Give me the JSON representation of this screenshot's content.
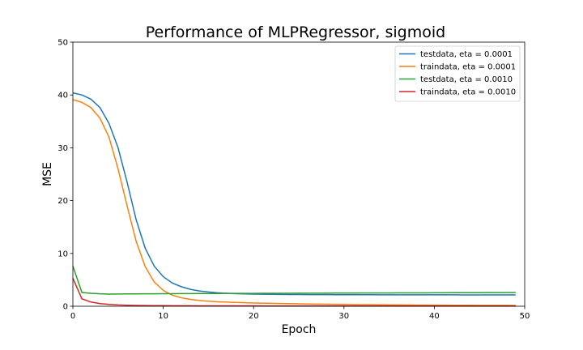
{
  "chart_data": {
    "type": "line",
    "title": "Performance of MLPRegressor, sigmoid",
    "xlabel": "Epoch",
    "ylabel": "MSE",
    "xlim": [
      0,
      50
    ],
    "ylim": [
      0,
      50
    ],
    "xticks": [
      0,
      10,
      20,
      30,
      40,
      50
    ],
    "yticks": [
      0,
      10,
      20,
      30,
      40,
      50
    ],
    "grid": false,
    "legend_position": "top-right",
    "x": [
      0,
      1,
      2,
      3,
      4,
      5,
      6,
      7,
      8,
      9,
      10,
      11,
      12,
      13,
      14,
      15,
      16,
      17,
      18,
      19,
      20,
      21,
      22,
      23,
      24,
      25,
      26,
      27,
      28,
      29,
      30,
      31,
      32,
      33,
      34,
      35,
      36,
      37,
      38,
      39,
      40,
      41,
      42,
      43,
      44,
      45,
      46,
      47,
      48,
      49
    ],
    "series": [
      {
        "name": "testdata, eta = 0.0001",
        "color": "#1f77b4",
        "values": [
          40.4,
          40.0,
          39.2,
          37.6,
          34.6,
          30.0,
          23.5,
          16.4,
          11.0,
          7.6,
          5.6,
          4.4,
          3.7,
          3.2,
          2.9,
          2.7,
          2.55,
          2.45,
          2.38,
          2.33,
          2.3,
          2.28,
          2.26,
          2.24,
          2.23,
          2.22,
          2.21,
          2.2,
          2.2,
          2.19,
          2.19,
          2.18,
          2.18,
          2.18,
          2.17,
          2.17,
          2.17,
          2.17,
          2.16,
          2.16,
          2.16,
          2.16,
          2.16,
          2.15,
          2.15,
          2.15,
          2.15,
          2.15,
          2.15,
          2.15
        ]
      },
      {
        "name": "traindata, eta = 0.0001",
        "color": "#ff7f0e",
        "values": [
          39.1,
          38.6,
          37.6,
          35.6,
          32.0,
          26.0,
          19.0,
          12.3,
          7.5,
          4.6,
          3.0,
          2.1,
          1.6,
          1.3,
          1.1,
          0.95,
          0.85,
          0.78,
          0.72,
          0.67,
          0.62,
          0.58,
          0.55,
          0.52,
          0.49,
          0.46,
          0.43,
          0.41,
          0.39,
          0.37,
          0.35,
          0.33,
          0.31,
          0.3,
          0.28,
          0.27,
          0.26,
          0.25,
          0.24,
          0.23,
          0.22,
          0.21,
          0.2,
          0.19,
          0.19,
          0.18,
          0.18,
          0.17,
          0.17,
          0.16
        ]
      },
      {
        "name": "testdata, eta = 0.0010",
        "color": "#2ca02c",
        "values": [
          7.6,
          2.6,
          2.45,
          2.35,
          2.3,
          2.32,
          2.34,
          2.33,
          2.35,
          2.36,
          2.37,
          2.38,
          2.39,
          2.4,
          2.41,
          2.42,
          2.42,
          2.43,
          2.43,
          2.44,
          2.44,
          2.45,
          2.45,
          2.46,
          2.46,
          2.47,
          2.47,
          2.48,
          2.48,
          2.49,
          2.5,
          2.5,
          2.51,
          2.51,
          2.52,
          2.52,
          2.53,
          2.53,
          2.54,
          2.54,
          2.55,
          2.55,
          2.56,
          2.56,
          2.57,
          2.57,
          2.58,
          2.58,
          2.59,
          2.6
        ]
      },
      {
        "name": "traindata, eta = 0.0010",
        "color": "#d62728",
        "values": [
          5.3,
          1.4,
          0.8,
          0.5,
          0.35,
          0.25,
          0.2,
          0.16,
          0.14,
          0.12,
          0.11,
          0.1,
          0.09,
          0.09,
          0.08,
          0.08,
          0.08,
          0.07,
          0.07,
          0.07,
          0.07,
          0.06,
          0.06,
          0.06,
          0.06,
          0.06,
          0.06,
          0.05,
          0.05,
          0.05,
          0.05,
          0.05,
          0.05,
          0.05,
          0.05,
          0.05,
          0.04,
          0.04,
          0.04,
          0.04,
          0.04,
          0.04,
          0.04,
          0.04,
          0.04,
          0.04,
          0.04,
          0.04,
          0.04,
          0.04
        ]
      }
    ]
  }
}
